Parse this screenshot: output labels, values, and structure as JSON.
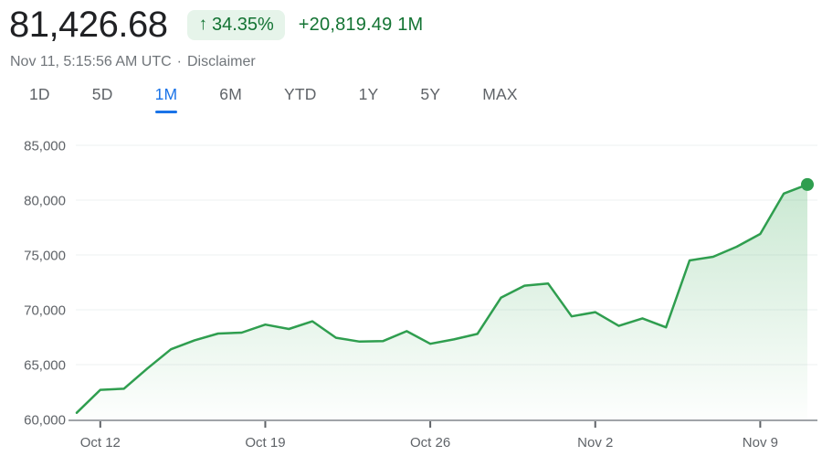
{
  "header": {
    "price": "81,426.68",
    "badge": {
      "arrow": "↑",
      "percent": "34.35%"
    },
    "change": "+20,819.49 1M",
    "timestamp": "Nov 11, 5:15:56 AM UTC",
    "separator": "·",
    "disclaimer_label": "Disclaimer"
  },
  "range_tabs": [
    {
      "label": "1D",
      "active": false
    },
    {
      "label": "5D",
      "active": false
    },
    {
      "label": "1M",
      "active": true
    },
    {
      "label": "6M",
      "active": false
    },
    {
      "label": "YTD",
      "active": false
    },
    {
      "label": "1Y",
      "active": false
    },
    {
      "label": "5Y",
      "active": false
    },
    {
      "label": "MAX",
      "active": false
    }
  ],
  "colors": {
    "price_text": "#202124",
    "green_text": "#137333",
    "badge_bg": "#e6f4ea",
    "accent_blue": "#1a73e8",
    "tab_gray": "#5f6368",
    "subtitle_gray": "#70757a",
    "line_green": "#2f9e4f",
    "fill_green": "#34a853",
    "gridline": "#eef0f2",
    "axis_line": "#80868b"
  },
  "chart_data": {
    "type": "area",
    "title": "",
    "xlabel": "",
    "ylabel": "",
    "grid": true,
    "legend": "none",
    "x": [
      "Oct 11",
      "Oct 12",
      "Oct 13",
      "Oct 14",
      "Oct 15",
      "Oct 16",
      "Oct 17",
      "Oct 18",
      "Oct 19",
      "Oct 20",
      "Oct 21",
      "Oct 22",
      "Oct 23",
      "Oct 24",
      "Oct 25",
      "Oct 26",
      "Oct 27",
      "Oct 28",
      "Oct 29",
      "Oct 30",
      "Oct 31",
      "Nov 1",
      "Nov 2",
      "Nov 3",
      "Nov 4",
      "Nov 5",
      "Nov 6",
      "Nov 7",
      "Nov 8",
      "Nov 9",
      "Nov 10",
      "Nov 11"
    ],
    "values": [
      60607,
      62700,
      62800,
      64650,
      66400,
      67220,
      67830,
      67920,
      68650,
      68250,
      68950,
      67450,
      67100,
      67150,
      68050,
      66900,
      67300,
      67800,
      71100,
      72200,
      72400,
      69400,
      69780,
      68530,
      69220,
      68400,
      74500,
      74830,
      75750,
      76920,
      80600,
      81426.68
    ],
    "endpoint_value": 81426.68,
    "ylim": [
      60000,
      85000
    ],
    "y_ticks": [
      {
        "value": 60000,
        "label": "60,000"
      },
      {
        "value": 65000,
        "label": "65,000"
      },
      {
        "value": 70000,
        "label": "70,000"
      },
      {
        "value": 75000,
        "label": "75,000"
      },
      {
        "value": 80000,
        "label": "80,000"
      },
      {
        "value": 85000,
        "label": "85,000"
      }
    ],
    "x_ticks": [
      {
        "index": 1,
        "label": "Oct 12"
      },
      {
        "index": 8,
        "label": "Oct 19"
      },
      {
        "index": 15,
        "label": "Oct 26"
      },
      {
        "index": 22,
        "label": "Nov 2"
      },
      {
        "index": 29,
        "label": "Nov 9"
      }
    ],
    "line_color": "#2f9e4f",
    "fill_color": "#34a853"
  }
}
